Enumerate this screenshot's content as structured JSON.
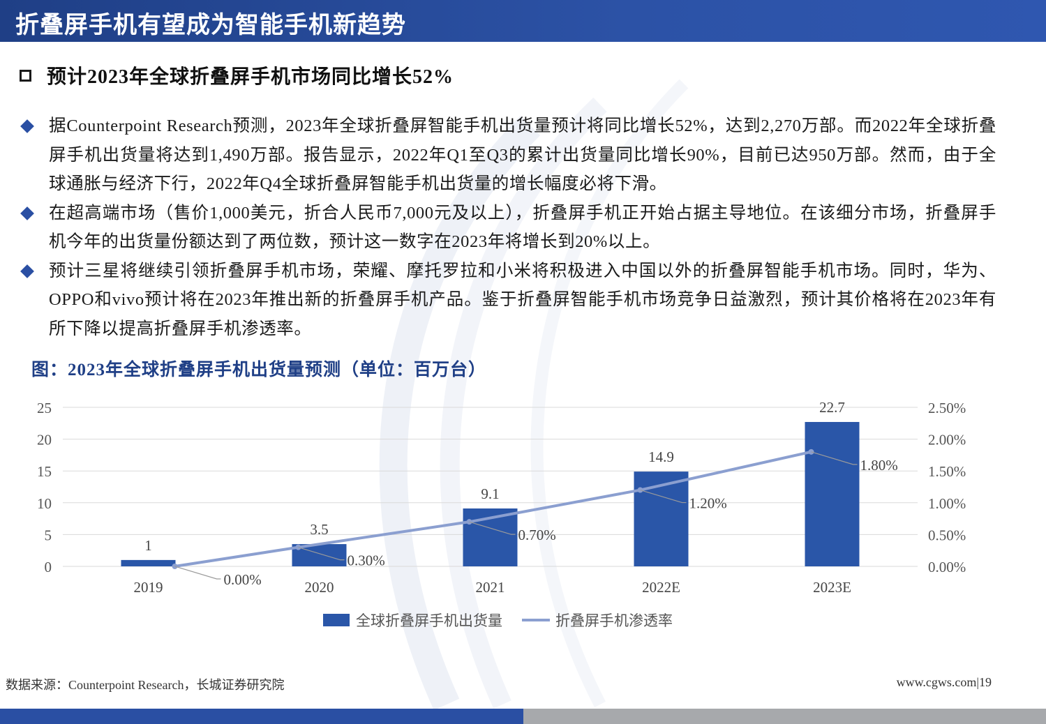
{
  "header": {
    "title": "折叠屏手机有望成为智能手机新趋势"
  },
  "section": {
    "heading": "预计2023年全球折叠屏手机市场同比增长52%"
  },
  "bullets": [
    "据Counterpoint Research预测，2023年全球折叠屏智能手机出货量预计将同比增长52%，达到2,270万部。而2022年全球折叠屏手机出货量将达到1,490万部。报告显示，2022年Q1至Q3的累计出货量同比增长90%，目前已达950万部。然而，由于全球通胀与经济下行，2022年Q4全球折叠屏智能手机出货量的增长幅度必将下滑。",
    "在超高端市场（售价1,000美元，折合人民币7,000元及以上），折叠屏手机正开始占据主导地位。在该细分市场，折叠屏手机今年的出货量份额达到了两位数，预计这一数字在2023年将增长到20%以上。",
    "预计三星将继续引领折叠屏手机市场，荣耀、摩托罗拉和小米将积极进入中国以外的折叠屏智能手机市场。同时，华为、OPPO和vivo预计将在2023年推出新的折叠屏手机产品。鉴于折叠屏智能手机市场竞争日益激烈，预计其价格将在2023年有所下降以提高折叠屏手机渗透率。"
  ],
  "figure": {
    "title": "图：2023年全球折叠屏手机出货量预测（单位：百万台）"
  },
  "chart_data": {
    "type": "bar",
    "categories": [
      "2019",
      "2020",
      "2021",
      "2022E",
      "2023E"
    ],
    "series": [
      {
        "name": "全球折叠屏手机出货量",
        "type": "bar",
        "axis": "left",
        "values": [
          1,
          3.5,
          9.1,
          14.9,
          22.7
        ],
        "labels": [
          "1",
          "3.5",
          "9.1",
          "14.9",
          "22.7"
        ],
        "color": "#2a56a8"
      },
      {
        "name": "折叠屏手机渗透率",
        "type": "line",
        "axis": "right",
        "values": [
          0.0,
          0.3,
          0.7,
          1.2,
          1.8
        ],
        "labels": [
          "0.00%",
          "0.30%",
          "0.70%",
          "1.20%",
          "1.80%"
        ],
        "color": "#8b9fd0"
      }
    ],
    "y_left": {
      "min": 0,
      "max": 25,
      "ticks": [
        "0",
        "5",
        "10",
        "15",
        "20",
        "25"
      ]
    },
    "y_right": {
      "min": 0,
      "max": 2.5,
      "ticks": [
        "0.00%",
        "0.50%",
        "1.00%",
        "1.50%",
        "2.00%",
        "2.50%"
      ]
    },
    "grid": true,
    "legend": "bottom"
  },
  "footer": {
    "source": "数据来源：Counterpoint Research，长城证券研究院",
    "page": "www.cgws.com|19"
  },
  "colors": {
    "brand_blue": "#2a4fa3",
    "title_bar": "#1f3f86",
    "bottom_gray": "#a7a9ac"
  }
}
